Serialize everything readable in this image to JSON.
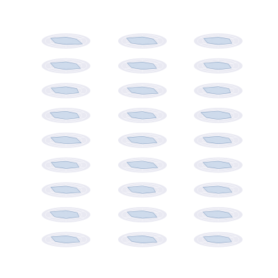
{
  "chart_data": {
    "type": "radar",
    "axes": [],
    "grid": true,
    "panels": [
      {
        "title": "",
        "values": [
          0.62,
          0.58,
          0.9,
          0.55,
          0.6,
          0.85
        ]
      },
      {
        "title": "",
        "values": [
          0.66,
          0.6,
          0.82,
          0.58,
          0.64,
          0.88
        ]
      },
      {
        "title": "",
        "values": [
          0.6,
          0.62,
          0.75,
          0.56,
          0.6,
          0.8
        ]
      },
      {
        "title": "",
        "values": [
          0.64,
          0.58,
          0.8,
          0.6,
          0.62,
          0.86
        ]
      },
      {
        "title": "",
        "values": [
          0.58,
          0.6,
          0.78,
          0.55,
          0.6,
          0.84
        ]
      },
      {
        "title": "",
        "values": [
          0.6,
          0.56,
          0.72,
          0.58,
          0.62,
          0.8
        ]
      },
      {
        "title": "",
        "values": [
          0.62,
          0.6,
          0.7,
          0.54,
          0.6,
          0.82
        ]
      },
      {
        "title": "",
        "values": [
          0.6,
          0.62,
          0.86,
          0.56,
          0.6,
          0.84
        ]
      },
      {
        "title": "",
        "values": [
          0.64,
          0.6,
          0.68,
          0.58,
          0.62,
          0.84
        ]
      },
      {
        "title": "",
        "values": [
          0.66,
          0.6,
          0.74,
          0.6,
          0.64,
          0.88
        ]
      },
      {
        "title": "",
        "values": [
          0.62,
          0.58,
          0.76,
          0.56,
          0.6,
          0.84
        ]
      },
      {
        "title": "",
        "values": [
          0.68,
          0.62,
          0.72,
          0.62,
          0.66,
          0.96
        ]
      },
      {
        "title": "",
        "values": [
          0.6,
          0.58,
          0.84,
          0.55,
          0.6,
          0.84
        ]
      },
      {
        "title": "",
        "values": [
          0.62,
          0.6,
          0.8,
          0.57,
          0.6,
          0.84
        ]
      },
      {
        "title": "",
        "values": [
          0.62,
          0.6,
          0.74,
          0.56,
          0.62,
          0.84
        ]
      },
      {
        "title": "",
        "values": [
          0.6,
          0.58,
          0.72,
          0.55,
          0.6,
          0.82
        ]
      },
      {
        "title": "",
        "values": [
          0.64,
          0.6,
          0.84,
          0.58,
          0.62,
          0.86
        ]
      },
      {
        "title": "",
        "values": [
          0.62,
          0.6,
          0.74,
          0.56,
          0.6,
          0.84
        ]
      },
      {
        "title": "",
        "values": [
          0.6,
          0.58,
          0.8,
          0.55,
          0.62,
          0.84
        ]
      },
      {
        "title": "",
        "values": [
          0.62,
          0.6,
          0.72,
          0.57,
          0.6,
          0.82
        ]
      },
      {
        "title": "",
        "values": [
          0.6,
          0.58,
          0.76,
          0.56,
          0.6,
          0.84
        ]
      },
      {
        "title": "",
        "values": [
          0.66,
          0.62,
          0.72,
          0.6,
          0.64,
          0.88
        ]
      },
      {
        "title": "",
        "values": [
          0.62,
          0.6,
          0.8,
          0.57,
          0.6,
          0.84
        ]
      },
      {
        "title": "",
        "values": [
          0.62,
          0.58,
          0.78,
          0.56,
          0.6,
          0.84
        ]
      },
      {
        "title": "",
        "values": [
          0.6,
          0.58,
          0.76,
          0.55,
          0.6,
          0.82
        ]
      },
      {
        "title": "",
        "values": [
          0.62,
          0.6,
          0.8,
          0.57,
          0.6,
          0.84
        ]
      },
      {
        "title": "",
        "values": [
          0.6,
          0.58,
          0.74,
          0.56,
          0.6,
          0.82
        ]
      }
    ]
  },
  "colors": {
    "background": "#e9e9f2",
    "fill": "#c8d7ea",
    "stroke": "#8fa9c8",
    "grid": "#ffffff"
  }
}
